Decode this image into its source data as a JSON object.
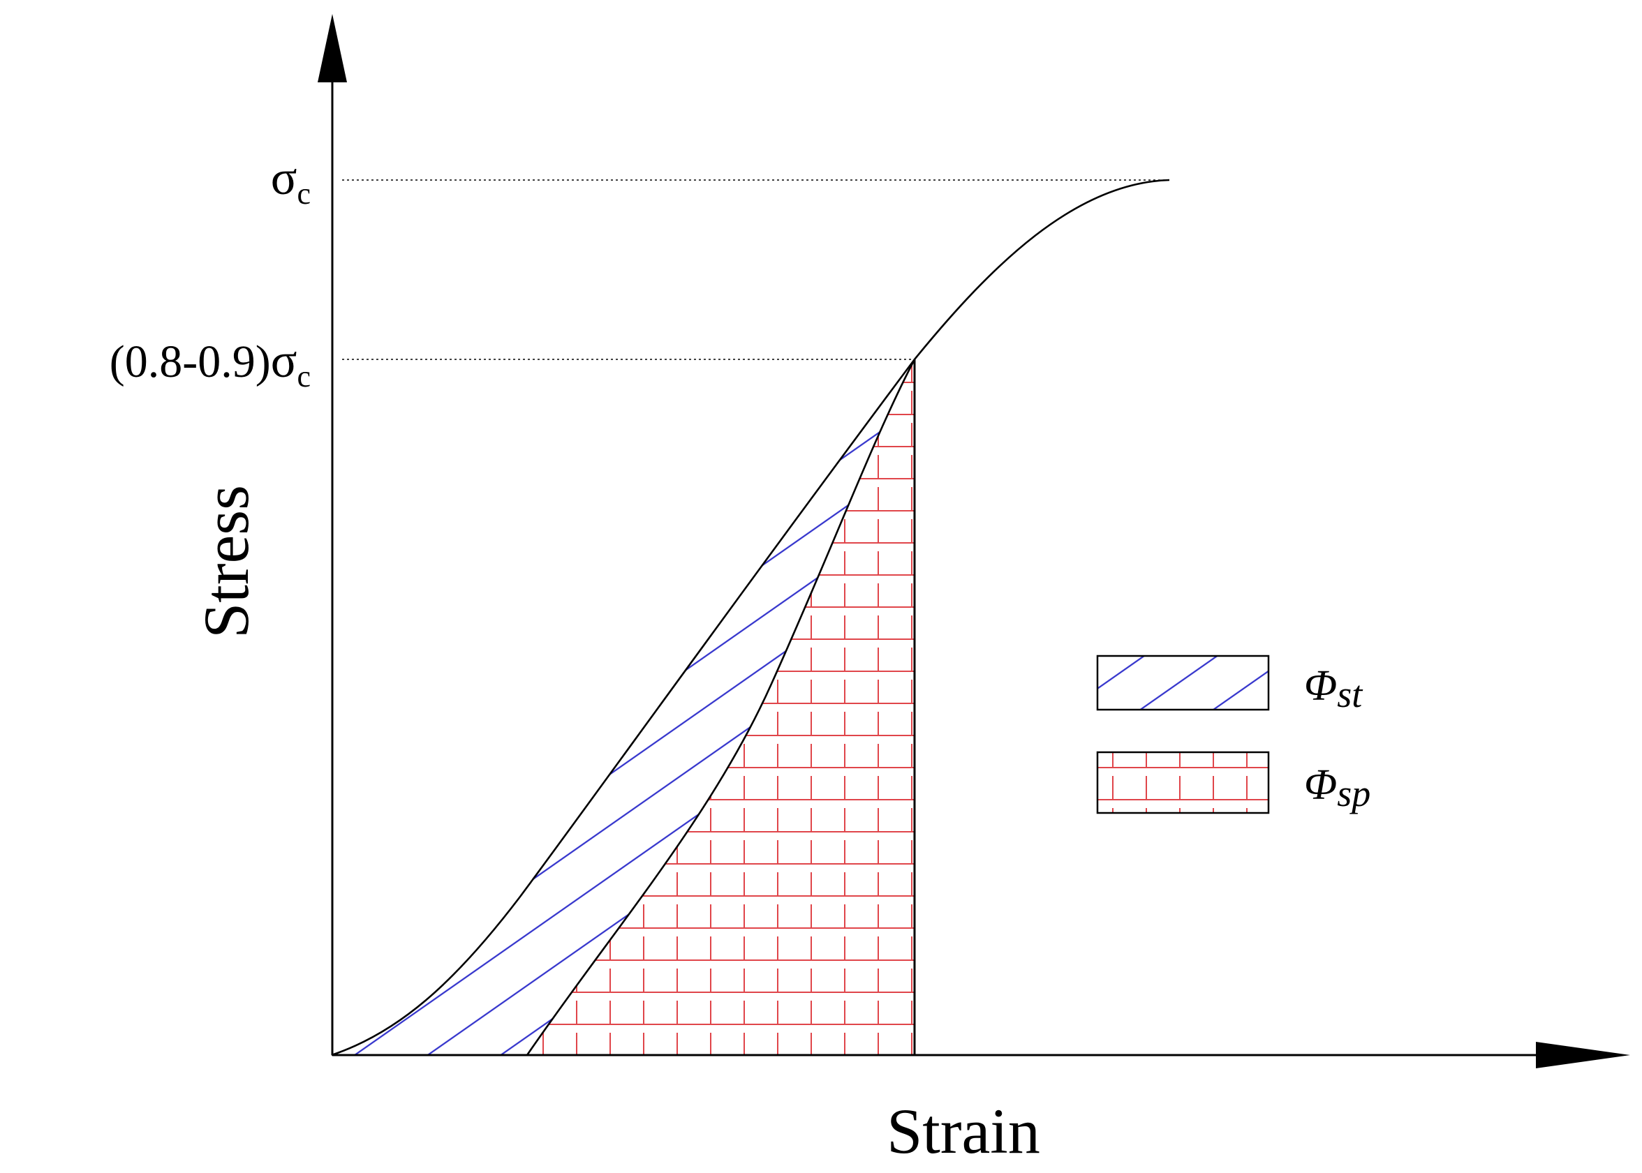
{
  "axes": {
    "x_label": "Strain",
    "y_label": "Stress"
  },
  "y_ticks": {
    "peak": {
      "symbol": "σ",
      "subscript": "c"
    },
    "threshold": {
      "prefix": "(0.8-0.9)",
      "symbol": "σ",
      "subscript": "c"
    }
  },
  "legend": {
    "items": [
      {
        "key": "phi_st",
        "symbol": "Φ",
        "subscript": "st",
        "pattern": "diagonal-hatch"
      },
      {
        "key": "phi_sp",
        "symbol": "Φ",
        "subscript": "sp",
        "pattern": "grid-hatch"
      }
    ]
  },
  "colors": {
    "line": "#000000",
    "hatch_st": "#3333cc",
    "hatch_sp": "#e0454a"
  }
}
